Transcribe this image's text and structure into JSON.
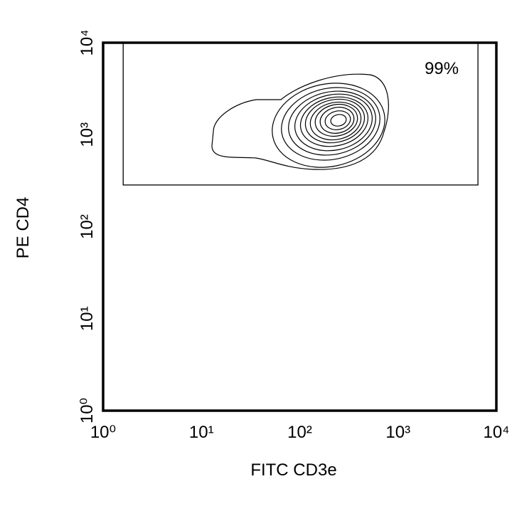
{
  "chart_data": {
    "type": "contour",
    "xlabel": "FITC CD3e",
    "ylabel": "PE CD4",
    "xscale": "log",
    "yscale": "log",
    "xlim": [
      1,
      10000
    ],
    "ylim": [
      1,
      10000
    ],
    "xticks": [
      {
        "value": 1,
        "label": "10⁰"
      },
      {
        "value": 10,
        "label": "10¹"
      },
      {
        "value": 100,
        "label": "10²"
      },
      {
        "value": 1000,
        "label": "10³"
      },
      {
        "value": 10000,
        "label": "10⁴"
      }
    ],
    "yticks": [
      {
        "value": 1,
        "label": "10⁰"
      },
      {
        "value": 10,
        "label": "10¹"
      },
      {
        "value": 100,
        "label": "10²"
      },
      {
        "value": 1000,
        "label": "10³"
      },
      {
        "value": 10000,
        "label": "10⁴"
      }
    ],
    "grid": false,
    "gate": {
      "xlim": [
        1.6,
        6500
      ],
      "ylim": [
        284,
        10000
      ],
      "label": "99%"
    }
  }
}
